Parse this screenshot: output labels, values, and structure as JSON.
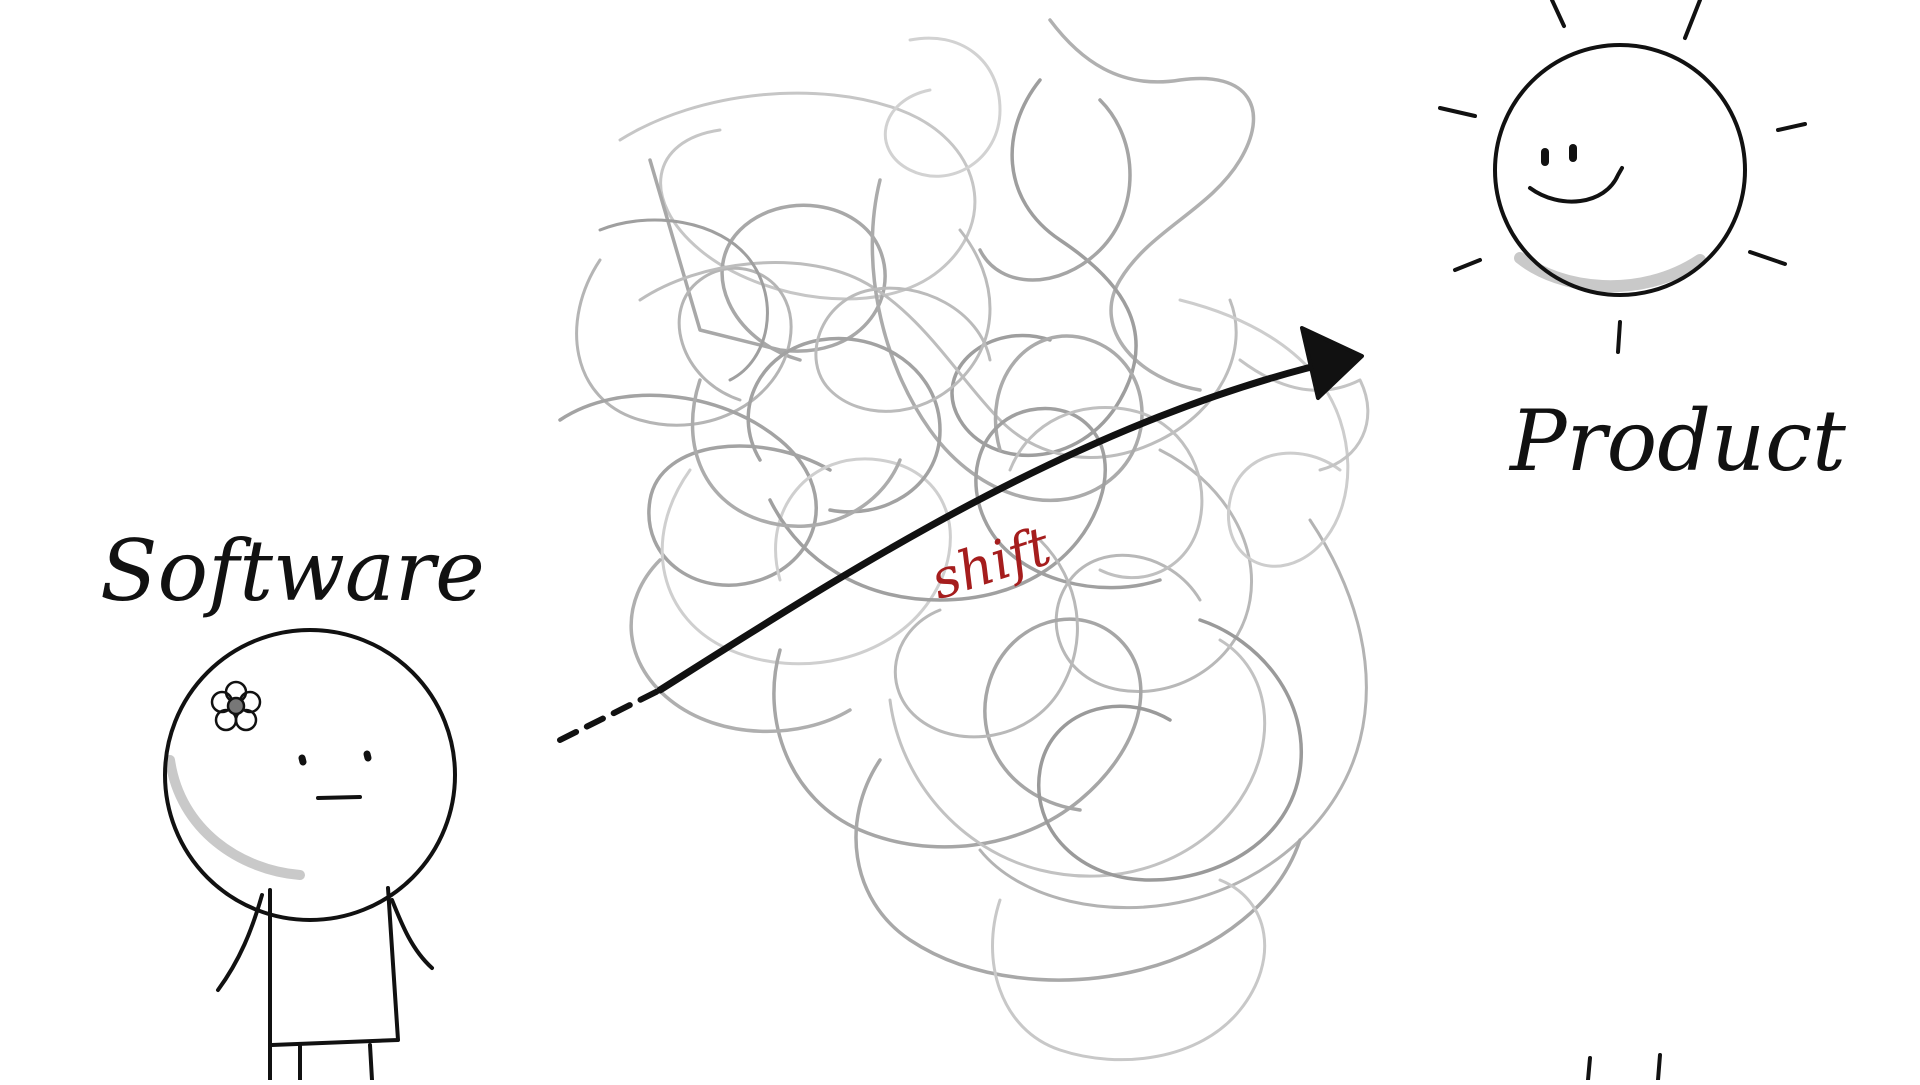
{
  "labels": {
    "left": "Software",
    "right": "Product",
    "arrow": "shift"
  },
  "figures": {
    "left": "person-with-flower-in-hair",
    "right": "smiling-sun"
  },
  "colors": {
    "background": "#ffffff",
    "ink": "#111111",
    "scribble": "#a9a9a9",
    "scribble_light": "#c9c9c9",
    "shift_text": "#a51d1d"
  }
}
